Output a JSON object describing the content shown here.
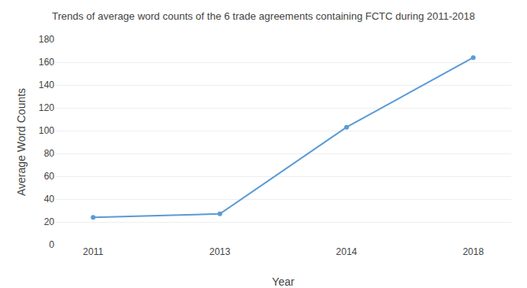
{
  "chart_data": {
    "type": "line",
    "title": "Trends of average word counts of the 6 trade agreements containing FCTC during 2011-2018",
    "xlabel": "Year",
    "ylabel": "Average Word Counts",
    "categories": [
      "2011",
      "2013",
      "2014",
      "2018"
    ],
    "values": [
      24,
      27,
      103,
      164
    ],
    "color": "#5b9bd5",
    "marker": "circle",
    "ylim": [
      0,
      180
    ],
    "yticks": [
      0,
      20,
      40,
      60,
      80,
      100,
      120,
      140,
      160,
      180
    ],
    "grid": true
  }
}
